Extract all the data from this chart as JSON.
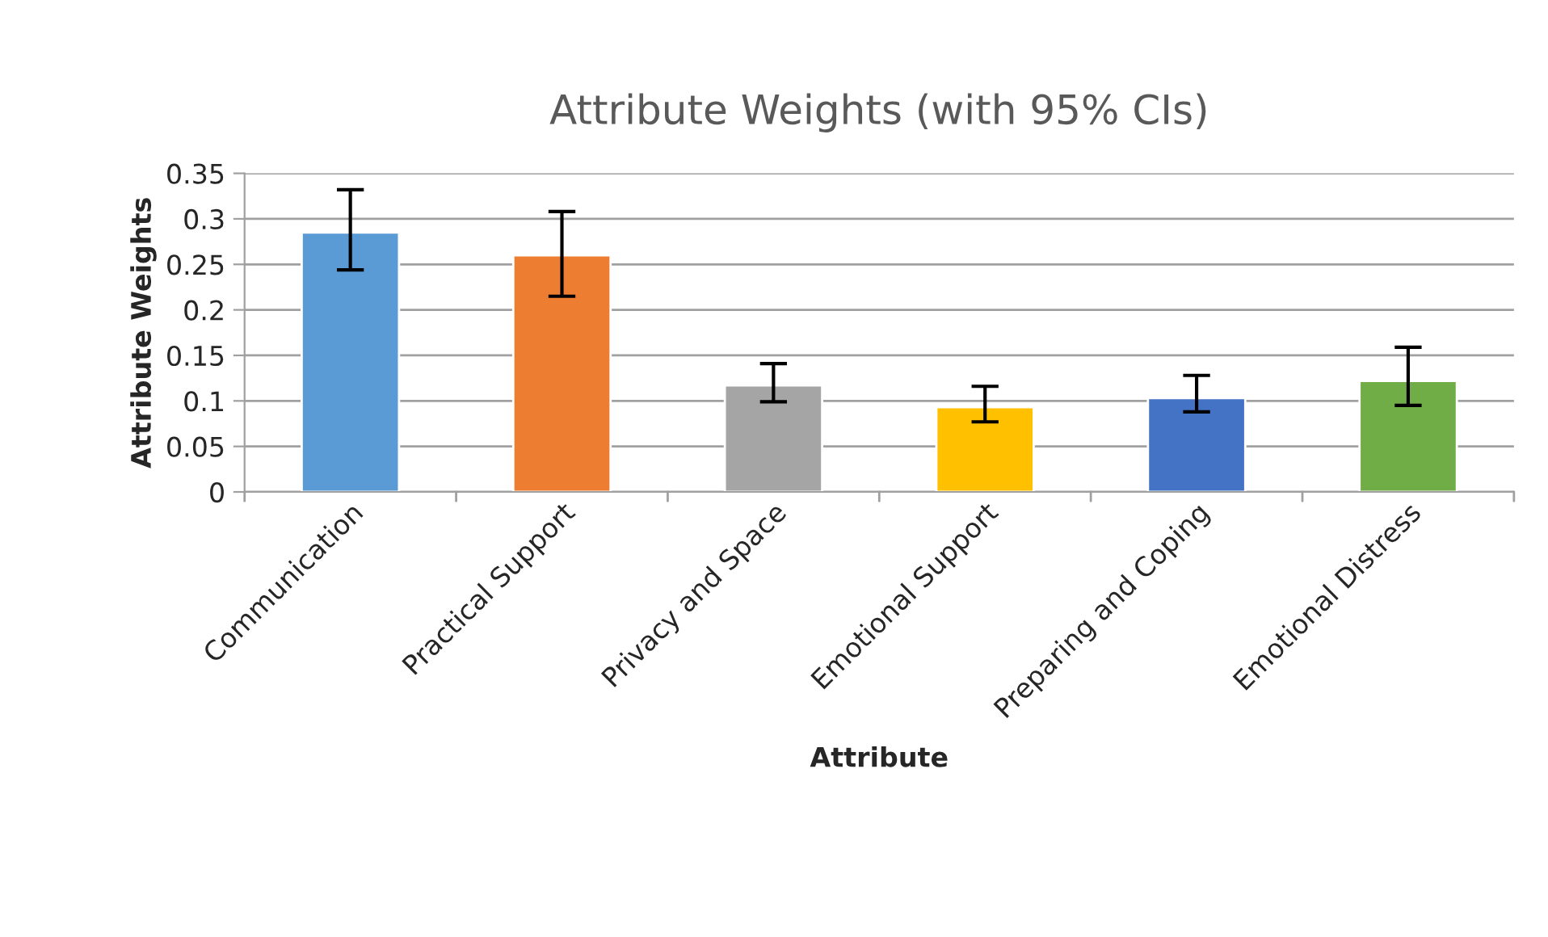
{
  "chart_data": {
    "type": "bar",
    "title": "Attribute Weights (with 95% CIs)",
    "xlabel": "Attribute",
    "ylabel": "Attribute Weights",
    "categories": [
      "Communication",
      "Practical Support",
      "Privacy and Space",
      "Emotional Support",
      "Preparing and Coping",
      "Emotional Distress"
    ],
    "values": [
      0.285,
      0.26,
      0.117,
      0.093,
      0.103,
      0.122
    ],
    "colors": [
      "#5b9bd5",
      "#ed7d31",
      "#a5a5a5",
      "#ffc000",
      "#4472c4",
      "#70ad47"
    ],
    "errors": [
      [
        0.244,
        0.332
      ],
      [
        0.215,
        0.308
      ],
      [
        0.099,
        0.141
      ],
      [
        0.077,
        0.116
      ],
      [
        0.088,
        0.128
      ],
      [
        0.095,
        0.159
      ]
    ],
    "ylim": [
      0,
      0.35
    ],
    "yticks": [
      0,
      {
        "value": 0.05,
        "label": "0.05"
      },
      {
        "value": 0.1,
        "label": "0.1"
      },
      {
        "value": 0.15,
        "label": "0.15"
      },
      {
        "value": 0.2,
        "label": "0.2"
      },
      {
        "value": 0.25,
        "label": "0.25"
      },
      {
        "value": 0.3,
        "label": "0.3"
      },
      {
        "value": 0.35,
        "label": "0.35"
      }
    ],
    "grid": "y",
    "legend": false
  }
}
